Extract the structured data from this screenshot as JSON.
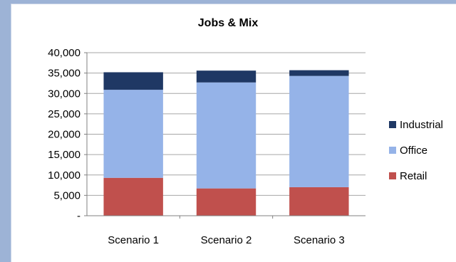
{
  "chart_data": {
    "type": "bar",
    "stacked": true,
    "title": "Jobs & Mix",
    "xlabel": "",
    "ylabel": "",
    "categories": [
      "Scenario 1",
      "Scenario 2",
      "Scenario 3"
    ],
    "series": [
      {
        "name": "Retail",
        "values": [
          9300,
          6700,
          7000
        ],
        "color": "#c0504d"
      },
      {
        "name": "Office",
        "values": [
          21600,
          26000,
          27300
        ],
        "color": "#95b3e8"
      },
      {
        "name": "Industrial",
        "values": [
          4300,
          2900,
          1400
        ],
        "color": "#1f3864"
      }
    ],
    "ylim": [
      0,
      40000
    ],
    "yticks": [
      0,
      5000,
      10000,
      15000,
      20000,
      25000,
      30000,
      35000,
      40000
    ],
    "ytick_labels": [
      "-",
      "5,000",
      "10,000",
      "15,000",
      "20,000",
      "25,000",
      "30,000",
      "35,000",
      "40,000"
    ],
    "grid": true,
    "legend_position": "right",
    "legend_order": [
      "Industrial",
      "Office",
      "Retail"
    ]
  }
}
